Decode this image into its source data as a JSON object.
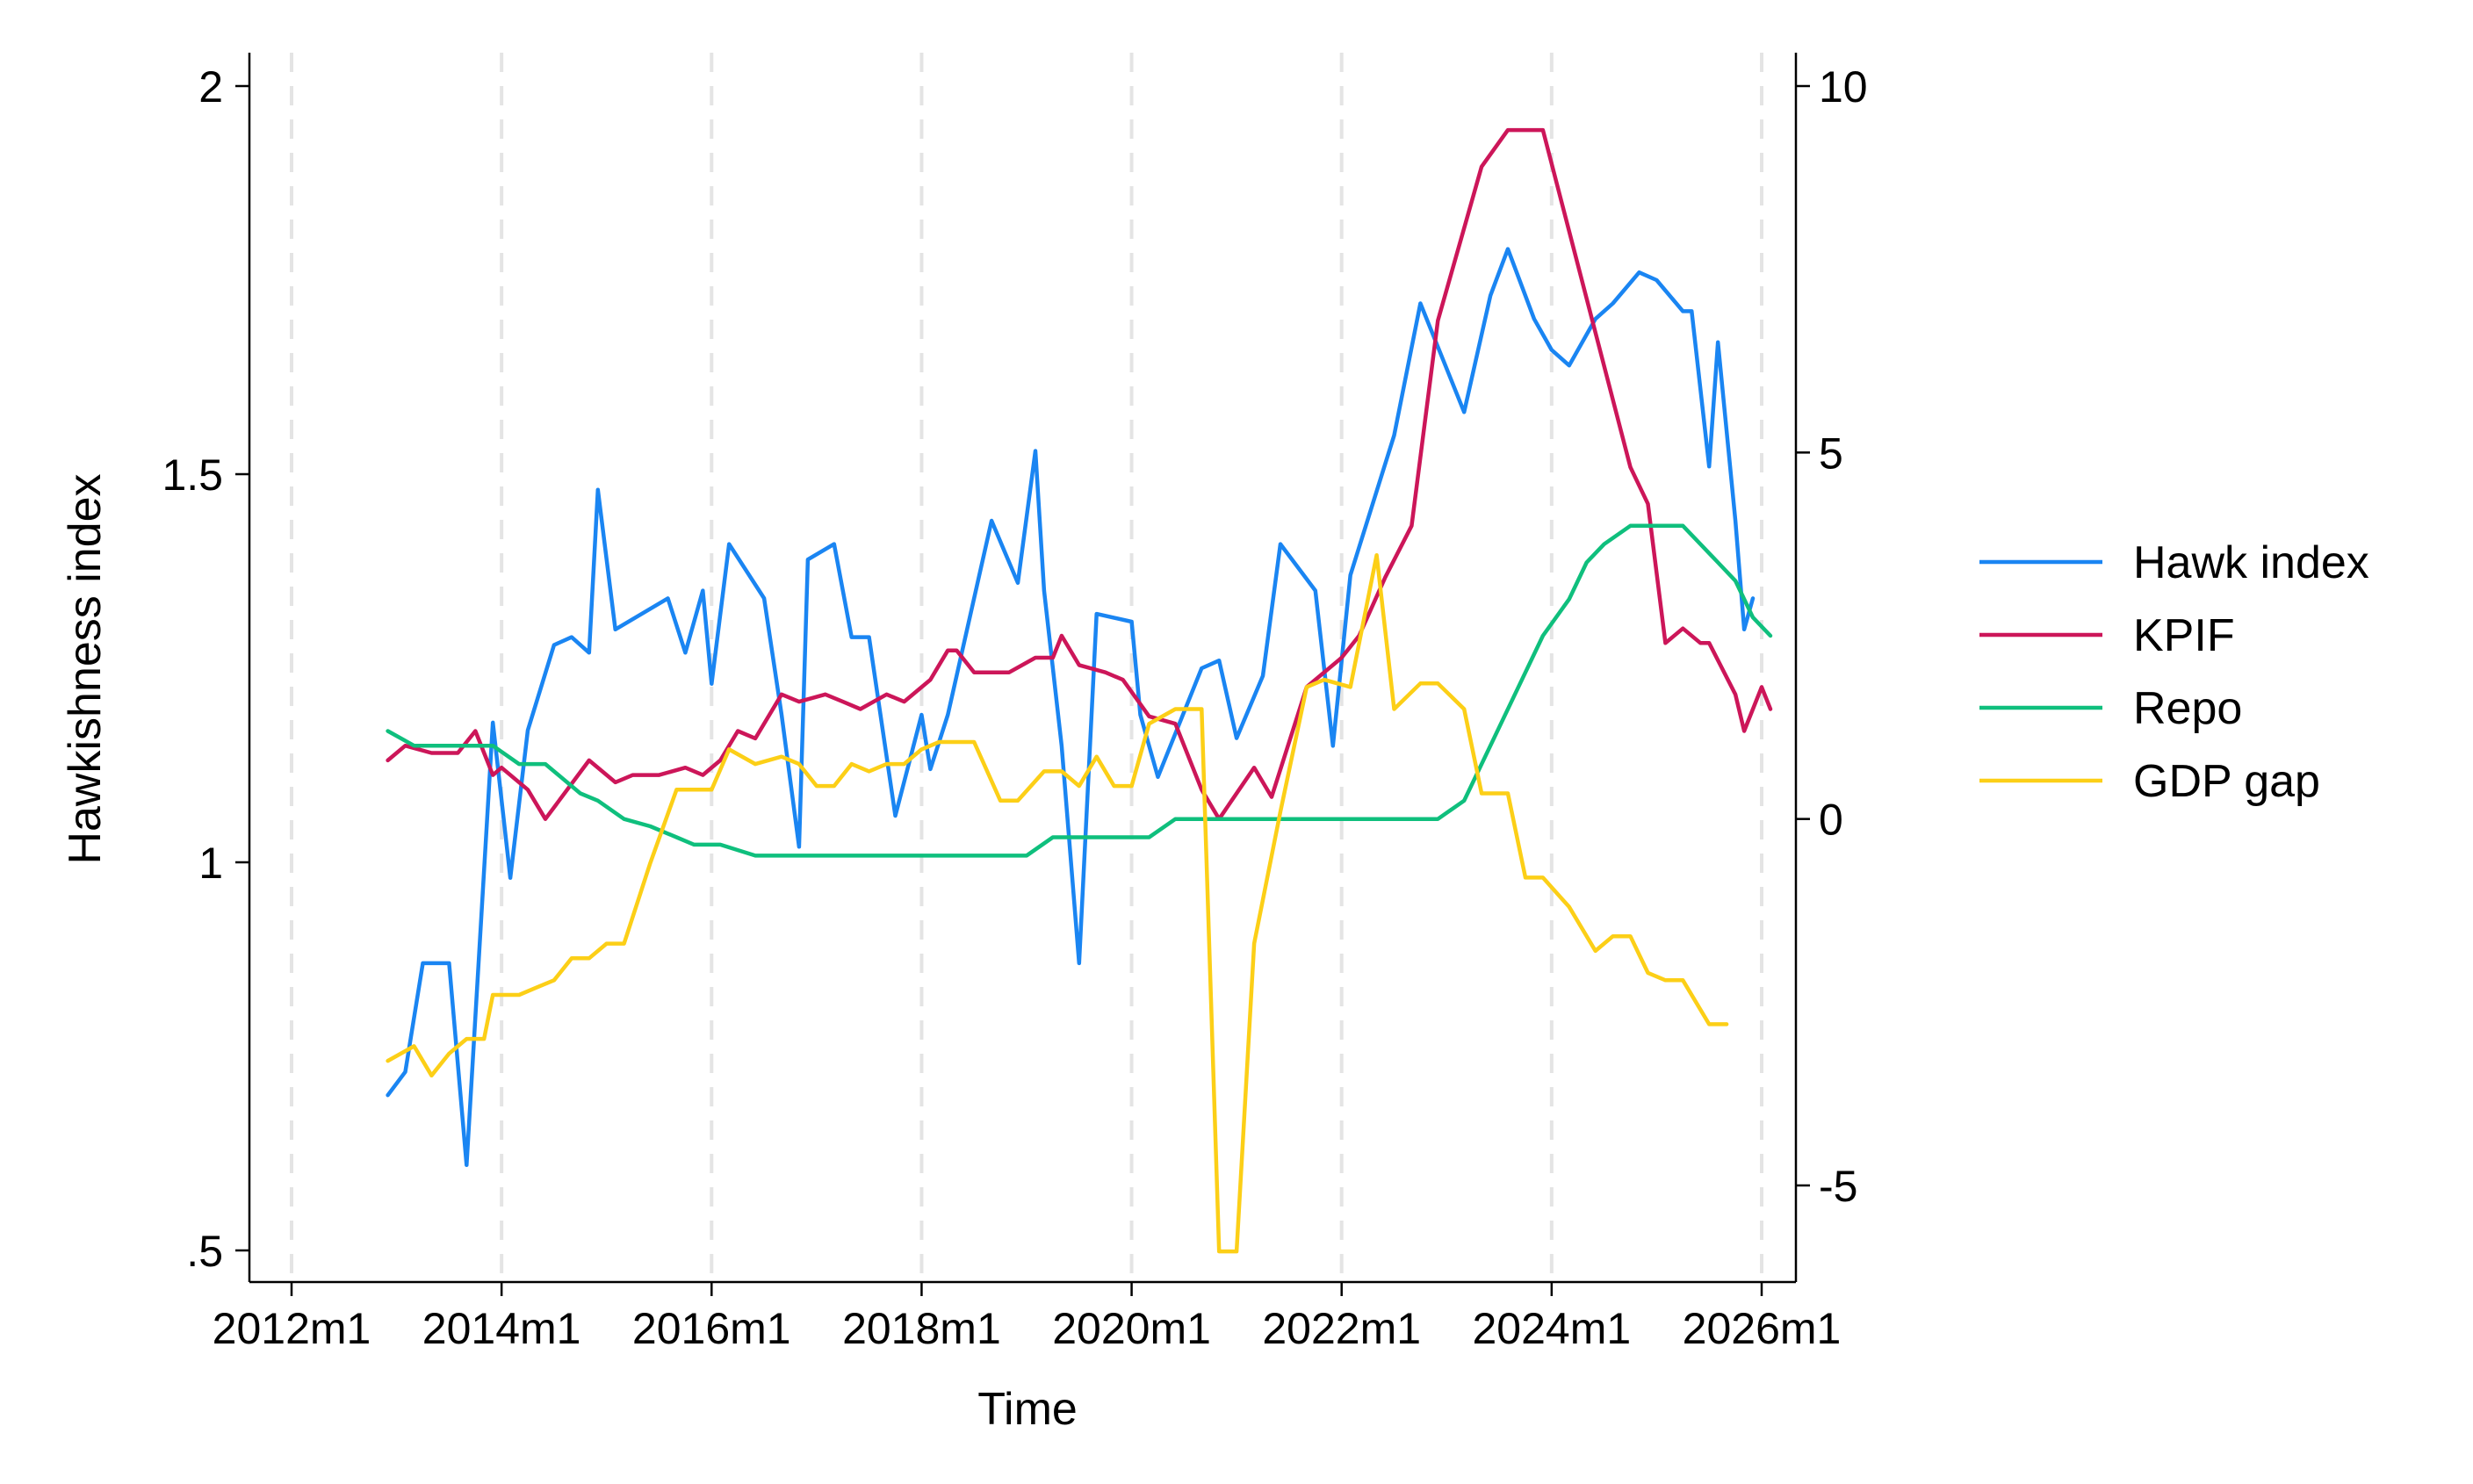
{
  "chart_data": {
    "type": "line",
    "title": "",
    "xlabel": "Time",
    "ylabel_left": "Hawkishness index",
    "ylabel_right": "",
    "x_axis": {
      "range": [
        "2012m1",
        "2026m1"
      ],
      "ticks": [
        "2012m1",
        "2014m1",
        "2016m1",
        "2018m1",
        "2020m1",
        "2022m1",
        "2024m1",
        "2026m1"
      ],
      "grid": "vertical dashed"
    },
    "y_left": {
      "range": [
        0.5,
        2.0
      ],
      "ticks": [
        0.5,
        1,
        1.5,
        2
      ],
      "tick_labels": [
        ".5",
        "1",
        "1.5",
        "2"
      ]
    },
    "y_right": {
      "range": [
        -6,
        10
      ],
      "ticks": [
        -5,
        0,
        5,
        10
      ],
      "tick_labels": [
        "-5",
        "0",
        "5",
        "10"
      ]
    },
    "legend": {
      "placement": "right"
    },
    "series": [
      {
        "name": "Hawk index",
        "axis": "left",
        "color": "#1a85f2",
        "points": [
          [
            "2012m12",
            0.7
          ],
          [
            "2013m2",
            0.73
          ],
          [
            "2013m4",
            0.87
          ],
          [
            "2013m7",
            0.87
          ],
          [
            "2013m9",
            0.61
          ],
          [
            "2013m12",
            1.18
          ],
          [
            "2014m2",
            0.98
          ],
          [
            "2014m4",
            1.17
          ],
          [
            "2014m7",
            1.28
          ],
          [
            "2014m9",
            1.29
          ],
          [
            "2014m11",
            1.27
          ],
          [
            "2014m12",
            1.48
          ],
          [
            "2015m2",
            1.3
          ],
          [
            "2015m8",
            1.34
          ],
          [
            "2015m10",
            1.27
          ],
          [
            "2015m12",
            1.35
          ],
          [
            "2016m1",
            1.23
          ],
          [
            "2016m3",
            1.41
          ],
          [
            "2016m7",
            1.34
          ],
          [
            "2016m9",
            1.19
          ],
          [
            "2016m11",
            1.02
          ],
          [
            "2016m12",
            1.39
          ],
          [
            "2017m3",
            1.41
          ],
          [
            "2017m5",
            1.29
          ],
          [
            "2017m7",
            1.29
          ],
          [
            "2017m10",
            1.06
          ],
          [
            "2018m1",
            1.19
          ],
          [
            "2018m2",
            1.12
          ],
          [
            "2018m4",
            1.19
          ],
          [
            "2018m9",
            1.44
          ],
          [
            "2018m12",
            1.36
          ],
          [
            "2019m2",
            1.53
          ],
          [
            "2019m3",
            1.35
          ],
          [
            "2019m5",
            1.15
          ],
          [
            "2019m7",
            0.87
          ],
          [
            "2019m9",
            1.32
          ],
          [
            "2020m1",
            1.31
          ],
          [
            "2020m2",
            1.19
          ],
          [
            "2020m4",
            1.11
          ],
          [
            "2020m9",
            1.25
          ],
          [
            "2020m11",
            1.26
          ],
          [
            "2021m1",
            1.16
          ],
          [
            "2021m4",
            1.24
          ],
          [
            "2021m6",
            1.41
          ],
          [
            "2021m10",
            1.35
          ],
          [
            "2021m12",
            1.15
          ],
          [
            "2022m2",
            1.37
          ],
          [
            "2022m7",
            1.55
          ],
          [
            "2022m10",
            1.72
          ],
          [
            "2023m3",
            1.58
          ],
          [
            "2023m6",
            1.73
          ],
          [
            "2023m8",
            1.79
          ],
          [
            "2023m11",
            1.7
          ],
          [
            "2024m1",
            1.66
          ],
          [
            "2024m3",
            1.64
          ],
          [
            "2024m6",
            1.7
          ],
          [
            "2024m8",
            1.72
          ],
          [
            "2024m11",
            1.76
          ],
          [
            "2025m1",
            1.75
          ],
          [
            "2025m4",
            1.71
          ],
          [
            "2025m5",
            1.71
          ],
          [
            "2025m7",
            1.51
          ],
          [
            "2025m8",
            1.67
          ],
          [
            "2025m10",
            1.44
          ],
          [
            "2025m11",
            1.3
          ],
          [
            "2025m12",
            1.34
          ]
        ]
      },
      {
        "name": "KPIF",
        "axis": "right",
        "color": "#cc1659",
        "points": [
          [
            "2012m12",
            0.8
          ],
          [
            "2013m2",
            1.0
          ],
          [
            "2013m5",
            0.9
          ],
          [
            "2013m8",
            0.9
          ],
          [
            "2013m10",
            1.2
          ],
          [
            "2013m12",
            0.6
          ],
          [
            "2014m1",
            0.7
          ],
          [
            "2014m4",
            0.4
          ],
          [
            "2014m6",
            0.0
          ],
          [
            "2014m11",
            0.8
          ],
          [
            "2015m2",
            0.5
          ],
          [
            "2015m4",
            0.6
          ],
          [
            "2015m7",
            0.6
          ],
          [
            "2015m10",
            0.7
          ],
          [
            "2015m12",
            0.6
          ],
          [
            "2016m2",
            0.8
          ],
          [
            "2016m4",
            1.2
          ],
          [
            "2016m6",
            1.1
          ],
          [
            "2016m9",
            1.7
          ],
          [
            "2016m11",
            1.6
          ],
          [
            "2017m2",
            1.7
          ],
          [
            "2017m4",
            1.6
          ],
          [
            "2017m6",
            1.5
          ],
          [
            "2017m9",
            1.7
          ],
          [
            "2017m11",
            1.6
          ],
          [
            "2018m2",
            1.9
          ],
          [
            "2018m4",
            2.3
          ],
          [
            "2018m5",
            2.3
          ],
          [
            "2018m7",
            2.0
          ],
          [
            "2018m11",
            2.0
          ],
          [
            "2019m2",
            2.2
          ],
          [
            "2019m4",
            2.2
          ],
          [
            "2019m5",
            2.5
          ],
          [
            "2019m7",
            2.1
          ],
          [
            "2019m10",
            2.0
          ],
          [
            "2019m12",
            1.9
          ],
          [
            "2020m3",
            1.4
          ],
          [
            "2020m6",
            1.3
          ],
          [
            "2020m9",
            0.4
          ],
          [
            "2020m11",
            0.0
          ],
          [
            "2021m3",
            0.7
          ],
          [
            "2021m5",
            0.3
          ],
          [
            "2021m9",
            1.8
          ],
          [
            "2022m1",
            2.2
          ],
          [
            "2022m3",
            2.5
          ],
          [
            "2022m6",
            3.3
          ],
          [
            "2022m9",
            4.0
          ],
          [
            "2022m12",
            6.8
          ],
          [
            "2023m5",
            8.9
          ],
          [
            "2023m8",
            9.4
          ],
          [
            "2023m12",
            9.4
          ],
          [
            "2024m10",
            4.8
          ],
          [
            "2024m12",
            4.3
          ],
          [
            "2025m2",
            2.4
          ],
          [
            "2025m4",
            2.6
          ],
          [
            "2025m6",
            2.4
          ],
          [
            "2025m7",
            2.4
          ],
          [
            "2025m10",
            1.7
          ],
          [
            "2025m11",
            1.2
          ],
          [
            "2026m1",
            1.8
          ],
          [
            "2026m2",
            1.5
          ]
        ]
      },
      {
        "name": "Repo",
        "axis": "right",
        "color": "#0fbf7d",
        "points": [
          [
            "2012m12",
            1.2
          ],
          [
            "2013m3",
            1.0
          ],
          [
            "2013m7",
            1.0
          ],
          [
            "2013m12",
            1.0
          ],
          [
            "2014m3",
            0.75
          ],
          [
            "2014m6",
            0.75
          ],
          [
            "2014m10",
            0.35
          ],
          [
            "2014m12",
            0.25
          ],
          [
            "2015m3",
            0.0
          ],
          [
            "2015m6",
            -0.1
          ],
          [
            "2015m9",
            -0.25
          ],
          [
            "2015m11",
            -0.35
          ],
          [
            "2016m2",
            -0.35
          ],
          [
            "2016m6",
            -0.5
          ],
          [
            "2016m9",
            -0.5
          ],
          [
            "2019m1",
            -0.5
          ],
          [
            "2019m4",
            -0.25
          ],
          [
            "2019m7",
            -0.25
          ],
          [
            "2020m3",
            -0.25
          ],
          [
            "2020m6",
            0.0
          ],
          [
            "2021m9",
            0.0
          ],
          [
            "2022m2",
            0.0
          ],
          [
            "2022m8",
            0.0
          ],
          [
            "2022m12",
            0.0
          ],
          [
            "2023m3",
            0.25
          ],
          [
            "2023m7",
            1.25
          ],
          [
            "2023m10",
            2.0
          ],
          [
            "2023m12",
            2.5
          ],
          [
            "2024m3",
            3.0
          ],
          [
            "2024m5",
            3.5
          ],
          [
            "2024m7",
            3.75
          ],
          [
            "2024m10",
            4.0
          ],
          [
            "2025m1",
            4.0
          ],
          [
            "2025m4",
            4.0
          ],
          [
            "2025m6",
            3.75
          ],
          [
            "2025m8",
            3.5
          ],
          [
            "2025m10",
            3.25
          ],
          [
            "2025m12",
            2.75
          ],
          [
            "2026m2",
            2.5
          ]
        ]
      },
      {
        "name": "GDP gap",
        "axis": "right",
        "color": "#fccf17",
        "points": [
          [
            "2012m12",
            -3.3
          ],
          [
            "2013m3",
            -3.1
          ],
          [
            "2013m5",
            -3.5
          ],
          [
            "2013m7",
            -3.2
          ],
          [
            "2013m9",
            -3.0
          ],
          [
            "2013m11",
            -3.0
          ],
          [
            "2013m12",
            -2.4
          ],
          [
            "2014m3",
            -2.4
          ],
          [
            "2014m5",
            -2.3
          ],
          [
            "2014m7",
            -2.2
          ],
          [
            "2014m9",
            -1.9
          ],
          [
            "2014m11",
            -1.9
          ],
          [
            "2015m1",
            -1.7
          ],
          [
            "2015m3",
            -1.7
          ],
          [
            "2015m6",
            -0.6
          ],
          [
            "2015m9",
            0.4
          ],
          [
            "2015m11",
            0.4
          ],
          [
            "2016m1",
            0.4
          ],
          [
            "2016m3",
            0.95
          ],
          [
            "2016m6",
            0.75
          ],
          [
            "2016m9",
            0.85
          ],
          [
            "2016m11",
            0.75
          ],
          [
            "2017m1",
            0.45
          ],
          [
            "2017m3",
            0.45
          ],
          [
            "2017m5",
            0.75
          ],
          [
            "2017m7",
            0.65
          ],
          [
            "2017m9",
            0.75
          ],
          [
            "2017m11",
            0.75
          ],
          [
            "2018m1",
            0.95
          ],
          [
            "2018m3",
            1.05
          ],
          [
            "2018m5",
            1.05
          ],
          [
            "2018m7",
            1.05
          ],
          [
            "2018m10",
            0.25
          ],
          [
            "2018m12",
            0.25
          ],
          [
            "2019m3",
            0.65
          ],
          [
            "2019m5",
            0.65
          ],
          [
            "2019m7",
            0.45
          ],
          [
            "2019m9",
            0.85
          ],
          [
            "2019m11",
            0.45
          ],
          [
            "2020m1",
            0.45
          ],
          [
            "2020m3",
            1.3
          ],
          [
            "2020m6",
            1.5
          ],
          [
            "2020m9",
            1.5
          ],
          [
            "2020m11",
            -5.9
          ],
          [
            "2021m1",
            -5.9
          ],
          [
            "2021m3",
            -1.7
          ],
          [
            "2021m6",
            0.1
          ],
          [
            "2021m9",
            1.8
          ],
          [
            "2021m11",
            1.9
          ],
          [
            "2022m2",
            1.8
          ],
          [
            "2022m5",
            3.6
          ],
          [
            "2022m7",
            1.5
          ],
          [
            "2022m10",
            1.85
          ],
          [
            "2022m12",
            1.85
          ],
          [
            "2023m3",
            1.5
          ],
          [
            "2023m5",
            0.35
          ],
          [
            "2023m8",
            0.35
          ],
          [
            "2023m10",
            -0.8
          ],
          [
            "2023m12",
            -0.8
          ],
          [
            "2024m3",
            -1.2
          ],
          [
            "2024m6",
            -1.8
          ],
          [
            "2024m8",
            -1.6
          ],
          [
            "2024m10",
            -1.6
          ],
          [
            "2024m12",
            -2.1
          ],
          [
            "2025m2",
            -2.2
          ],
          [
            "2025m4",
            -2.2
          ],
          [
            "2025m7",
            -2.8
          ],
          [
            "2025m9",
            -2.8
          ]
        ]
      }
    ]
  }
}
